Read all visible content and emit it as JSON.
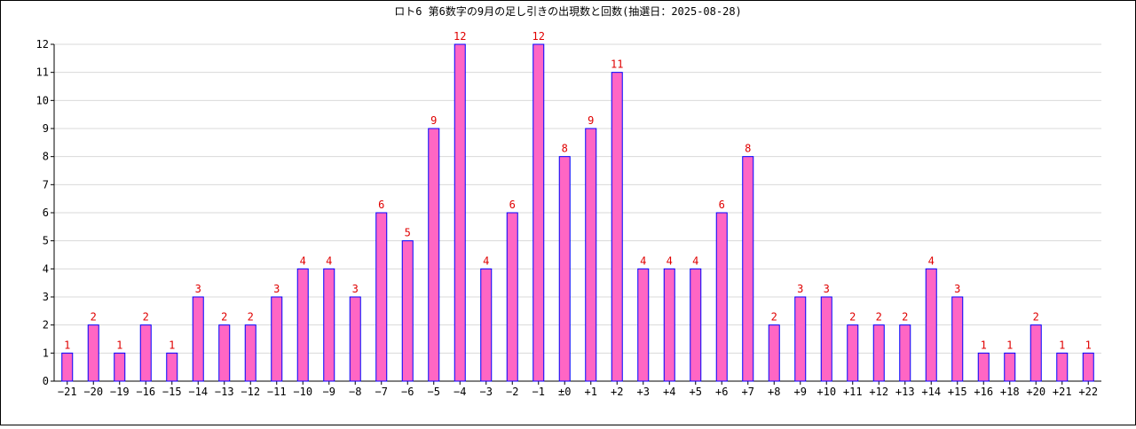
{
  "chart_data": {
    "type": "bar",
    "title": "ロト6 第6数字の9月の足し引きの出現数と回数(抽選日：2025-08-28)",
    "xlabel": "",
    "ylabel": "",
    "ylim": [
      0,
      12
    ],
    "yticks": [
      "0",
      "1",
      "2",
      "3",
      "4",
      "5",
      "6",
      "7",
      "8",
      "9",
      "10",
      "11",
      "12"
    ],
    "grid": true,
    "legend": "none",
    "colors": {
      "bar_fill": "#ff66c4",
      "bar_stroke": "#0000ff",
      "label": "#e00000",
      "grid": "#d9d9d9"
    },
    "categories": [
      "−21",
      "−20",
      "−19",
      "−16",
      "−15",
      "−14",
      "−13",
      "−12",
      "−11",
      "−10",
      "−9",
      "−8",
      "−7",
      "−6",
      "−5",
      "−4",
      "−3",
      "−2",
      "−1",
      "±0",
      "+1",
      "+2",
      "+3",
      "+4",
      "+5",
      "+6",
      "+7",
      "+8",
      "+9",
      "+10",
      "+11",
      "+12",
      "+13",
      "+14",
      "+15",
      "+16",
      "+18",
      "+20",
      "+21",
      "+22"
    ],
    "values": [
      1,
      2,
      1,
      2,
      1,
      3,
      2,
      2,
      3,
      4,
      4,
      3,
      6,
      5,
      9,
      12,
      4,
      6,
      12,
      8,
      9,
      11,
      4,
      4,
      4,
      6,
      8,
      2,
      3,
      3,
      2,
      2,
      2,
      4,
      3,
      1,
      1,
      2,
      1,
      1
    ]
  }
}
